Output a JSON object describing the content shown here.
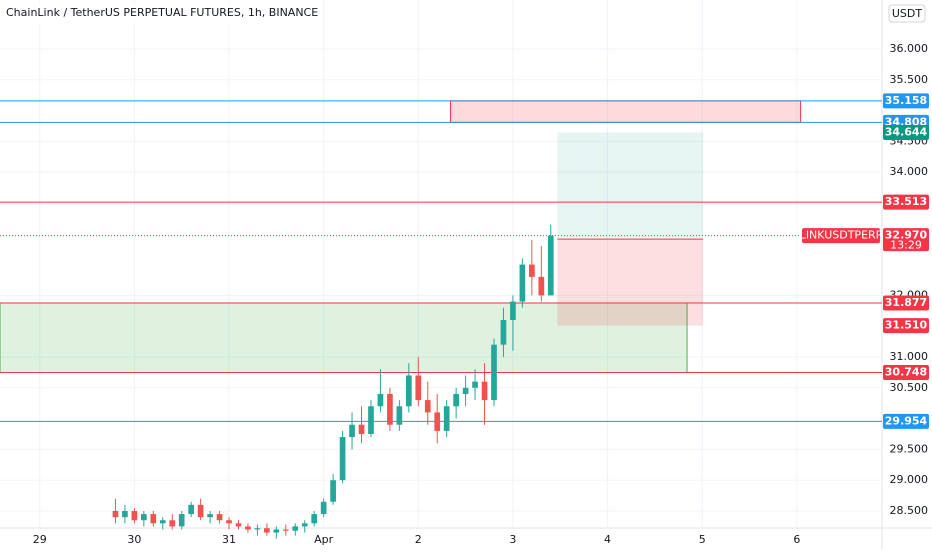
{
  "chart_data": {
    "type": "candlestick",
    "title": "ChainLink / TetherUS PERPETUAL FUTURES, 1h, BINANCE",
    "currency": "USDT",
    "xlim": [
      -0.42,
      8.9
    ],
    "ylim": [
      28.224,
      36.795
    ],
    "xticks": [
      {
        "value": 0,
        "label": "29"
      },
      {
        "value": 1,
        "label": "30"
      },
      {
        "value": 2,
        "label": "31"
      },
      {
        "value": 3,
        "label": "Apr"
      },
      {
        "value": 4,
        "label": "2"
      },
      {
        "value": 5,
        "label": "3"
      },
      {
        "value": 6,
        "label": "4"
      },
      {
        "value": 7,
        "label": "5"
      },
      {
        "value": 8,
        "label": "6"
      }
    ],
    "yticks": [
      {
        "value": 36,
        "label": "36.000"
      },
      {
        "value": 35.5,
        "label": "35.500"
      },
      {
        "value": 34.5,
        "label": "34.500"
      },
      {
        "value": 34,
        "label": "34.000"
      },
      {
        "value": 32,
        "label": "32.000"
      },
      {
        "value": 31,
        "label": "31.000"
      },
      {
        "value": 30.5,
        "label": "30.500"
      },
      {
        "value": 29.5,
        "label": "29.500"
      },
      {
        "value": 29,
        "label": "29.000"
      },
      {
        "value": 28.5,
        "label": "28.500"
      }
    ],
    "grid": true,
    "up_color": "#26a69a",
    "down_color": "#ef5350",
    "candles": {
      "x": [
        0.8,
        0.9,
        1.0,
        1.1,
        1.2,
        1.3,
        1.4,
        1.5,
        1.6,
        1.7,
        1.8,
        1.9,
        2.0,
        2.1,
        2.2,
        2.3,
        2.4,
        2.5,
        2.6,
        2.7,
        2.8,
        2.9,
        3.0,
        3.1,
        3.2,
        3.3,
        3.4,
        3.5,
        3.6,
        3.7,
        3.8,
        3.9,
        4.0,
        4.1,
        4.2,
        4.3,
        4.4,
        4.5,
        4.6,
        4.7,
        4.8,
        4.9,
        5.0,
        5.1,
        5.2,
        5.3,
        5.4
      ],
      "open": [
        28.5,
        28.4,
        28.5,
        28.35,
        28.45,
        28.3,
        28.35,
        28.25,
        28.45,
        28.6,
        28.4,
        28.45,
        28.35,
        28.3,
        28.25,
        28.2,
        28.22,
        28.15,
        28.2,
        28.18,
        28.25,
        28.3,
        28.45,
        28.65,
        29.0,
        29.7,
        29.9,
        29.75,
        30.2,
        30.4,
        29.9,
        30.2,
        30.7,
        30.3,
        30.1,
        29.8,
        30.2,
        30.4,
        30.5,
        30.6,
        30.3,
        31.2,
        31.6,
        31.9,
        32.5,
        32.3,
        32.0
      ],
      "high": [
        28.7,
        28.6,
        28.55,
        28.5,
        28.5,
        28.4,
        28.45,
        28.5,
        28.65,
        28.7,
        28.5,
        28.5,
        28.4,
        28.35,
        28.3,
        28.28,
        28.3,
        28.25,
        28.28,
        28.3,
        28.35,
        28.5,
        28.7,
        29.1,
        29.8,
        30.1,
        30.2,
        30.3,
        30.8,
        30.5,
        30.3,
        30.9,
        31.0,
        30.6,
        30.4,
        30.3,
        30.5,
        30.7,
        30.8,
        30.9,
        31.3,
        31.8,
        32.0,
        32.6,
        32.9,
        32.8,
        33.15
      ],
      "low": [
        28.3,
        28.3,
        28.3,
        28.25,
        28.25,
        28.2,
        28.2,
        28.2,
        28.4,
        28.35,
        28.3,
        28.3,
        28.2,
        28.2,
        28.15,
        28.1,
        28.1,
        28.05,
        28.1,
        28.1,
        28.15,
        28.25,
        28.4,
        28.6,
        28.95,
        29.5,
        29.6,
        29.7,
        30.1,
        29.8,
        29.8,
        30.1,
        30.2,
        29.9,
        29.6,
        29.7,
        30.0,
        30.2,
        30.3,
        29.9,
        30.2,
        31.0,
        31.1,
        31.8,
        32.0,
        31.9,
        32.0
      ],
      "close": [
        28.4,
        28.5,
        28.35,
        28.45,
        28.3,
        28.35,
        28.25,
        28.45,
        28.6,
        28.4,
        28.45,
        28.35,
        28.3,
        28.25,
        28.2,
        28.22,
        28.15,
        28.2,
        28.18,
        28.25,
        28.3,
        28.45,
        28.65,
        29.0,
        29.7,
        29.9,
        29.75,
        30.2,
        30.4,
        29.9,
        30.2,
        30.7,
        30.3,
        30.1,
        29.8,
        30.2,
        30.4,
        30.5,
        30.6,
        30.3,
        31.2,
        31.6,
        31.9,
        32.5,
        32.3,
        32.0,
        32.97
      ]
    },
    "zones": [
      {
        "x": [
          4.34,
          8.04
        ],
        "range": [
          34.808,
          35.158
        ],
        "color": "#f23645"
      },
      {
        "x": [
          -0.42,
          6.84
        ],
        "range": [
          30.748,
          31.877
        ],
        "color": "#4caf50"
      }
    ],
    "price_levels": [
      {
        "value": 35.158,
        "color": "#2196f3"
      },
      {
        "value": 34.808,
        "color": "#2196f3"
      },
      {
        "value": 33.513,
        "color": "#f23645"
      },
      {
        "value": 31.877,
        "color": "#f23645"
      },
      {
        "value": 30.748,
        "color": "#f23645"
      },
      {
        "value": 29.954,
        "color": "#2196f3"
      }
    ],
    "position": {
      "x": [
        5.47,
        7.01
      ],
      "target": {
        "value": 34.644,
        "color": "#089981"
      },
      "entry": {
        "value": 32.914,
        "color": "#f23645"
      },
      "stop": {
        "value": 31.51,
        "label": "31.510",
        "color": "#f23645"
      }
    },
    "last_price": {
      "value": 32.97,
      "label": "32.970",
      "symbol": "LINKUSDTPERP",
      "countdown": "13:29",
      "color": "#f23645"
    }
  }
}
